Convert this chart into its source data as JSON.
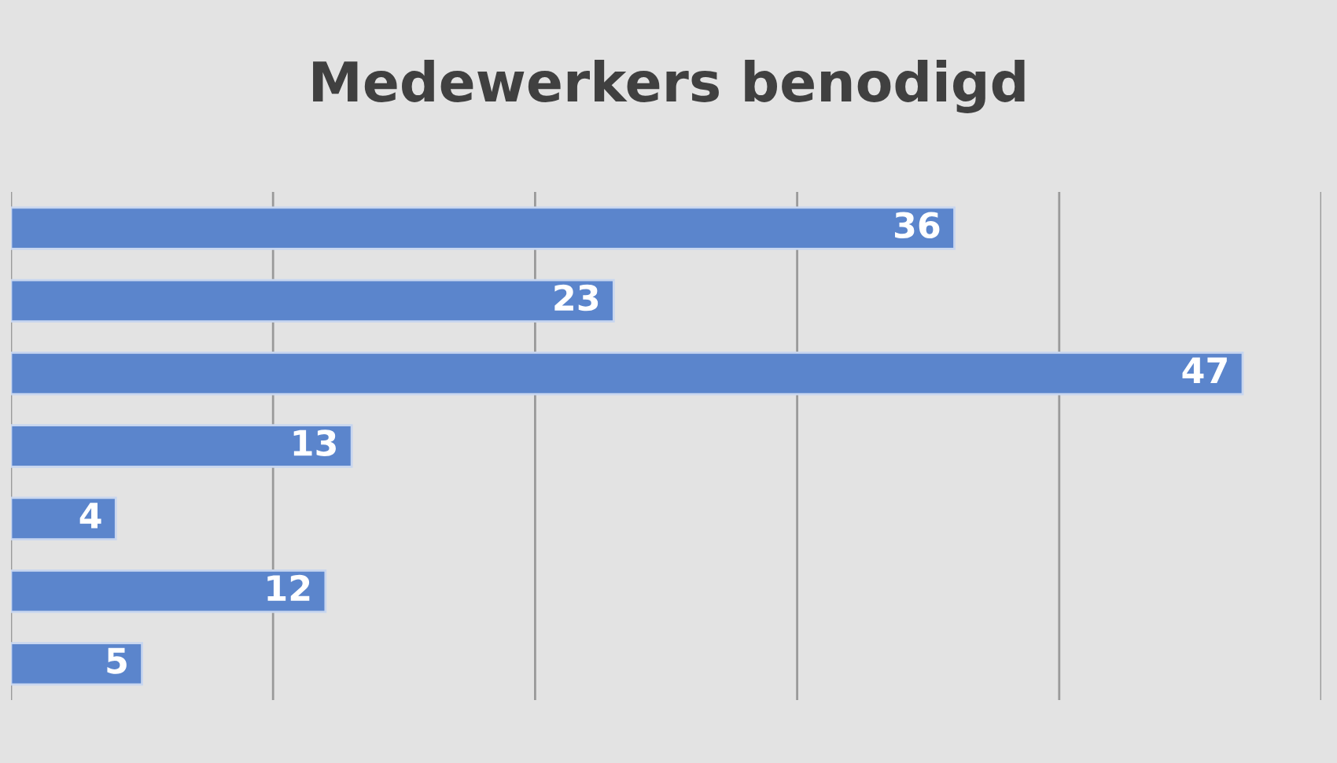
{
  "chart_data": {
    "type": "bar",
    "orientation": "horizontal",
    "title": "Medewerkers benodigd",
    "categories": [
      null,
      null,
      null,
      null,
      null,
      null,
      null
    ],
    "values": [
      36,
      23,
      47,
      13,
      4,
      12,
      5
    ],
    "color": "#5b85cc",
    "xlim": [
      0,
      50
    ],
    "xticks": [
      {
        "value": 0,
        "label": null
      },
      {
        "value": 10,
        "label": null
      },
      {
        "value": 20,
        "label": null
      },
      {
        "value": 30,
        "label": null
      },
      {
        "value": 40,
        "label": null
      },
      {
        "value": 50,
        "label": null
      }
    ],
    "grid": "x",
    "data_labels": true
  }
}
